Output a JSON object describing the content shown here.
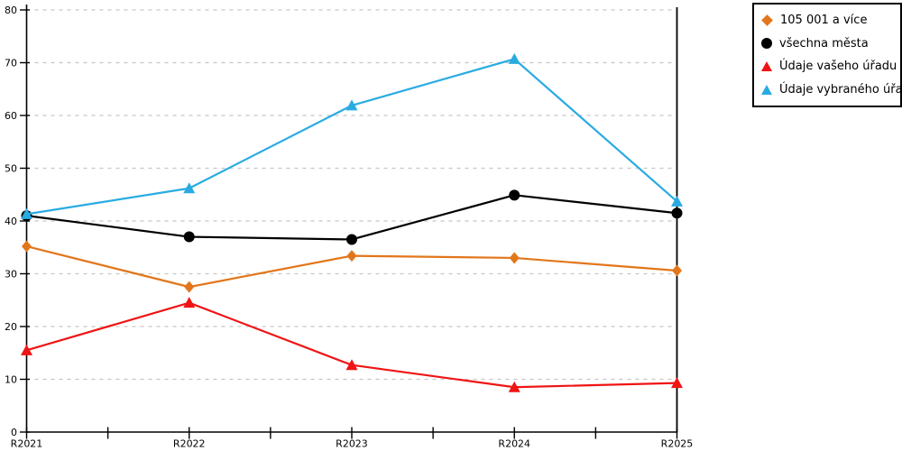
{
  "chart_data": {
    "type": "line",
    "title": "",
    "xlabel": "",
    "ylabel": "",
    "categories": [
      "R2021",
      "R2022",
      "R2023",
      "R2024",
      "R2025"
    ],
    "series": [
      {
        "name": "105 001 a více",
        "marker": "diamond",
        "color": "#e2761b",
        "values": [
          35.2,
          27.5,
          33.4,
          33.0,
          30.6
        ]
      },
      {
        "name": "všechna města",
        "marker": "circle",
        "color": "#000000",
        "values": [
          41.0,
          37.0,
          36.5,
          44.9,
          41.5
        ]
      },
      {
        "name": "Údaje vašeho úřadu",
        "marker": "triangle",
        "color": "#f01414",
        "values": [
          15.5,
          24.5,
          12.7,
          8.5,
          9.3
        ]
      },
      {
        "name": "Údaje vybraného úřadu",
        "marker": "triangle",
        "color": "#29abe2",
        "values": [
          41.3,
          46.2,
          61.9,
          70.7,
          43.7
        ]
      }
    ],
    "ylim": [
      0,
      80
    ],
    "y_tick_step": 10,
    "y_tick_labels": [
      "0",
      "10",
      "20",
      "30",
      "40",
      "50",
      "60",
      "70",
      "80"
    ],
    "grid": "horizontal-dashed",
    "grid_color": "#c6c6c6",
    "axis_color": "#000000",
    "legend_position": "top-right-outside"
  }
}
